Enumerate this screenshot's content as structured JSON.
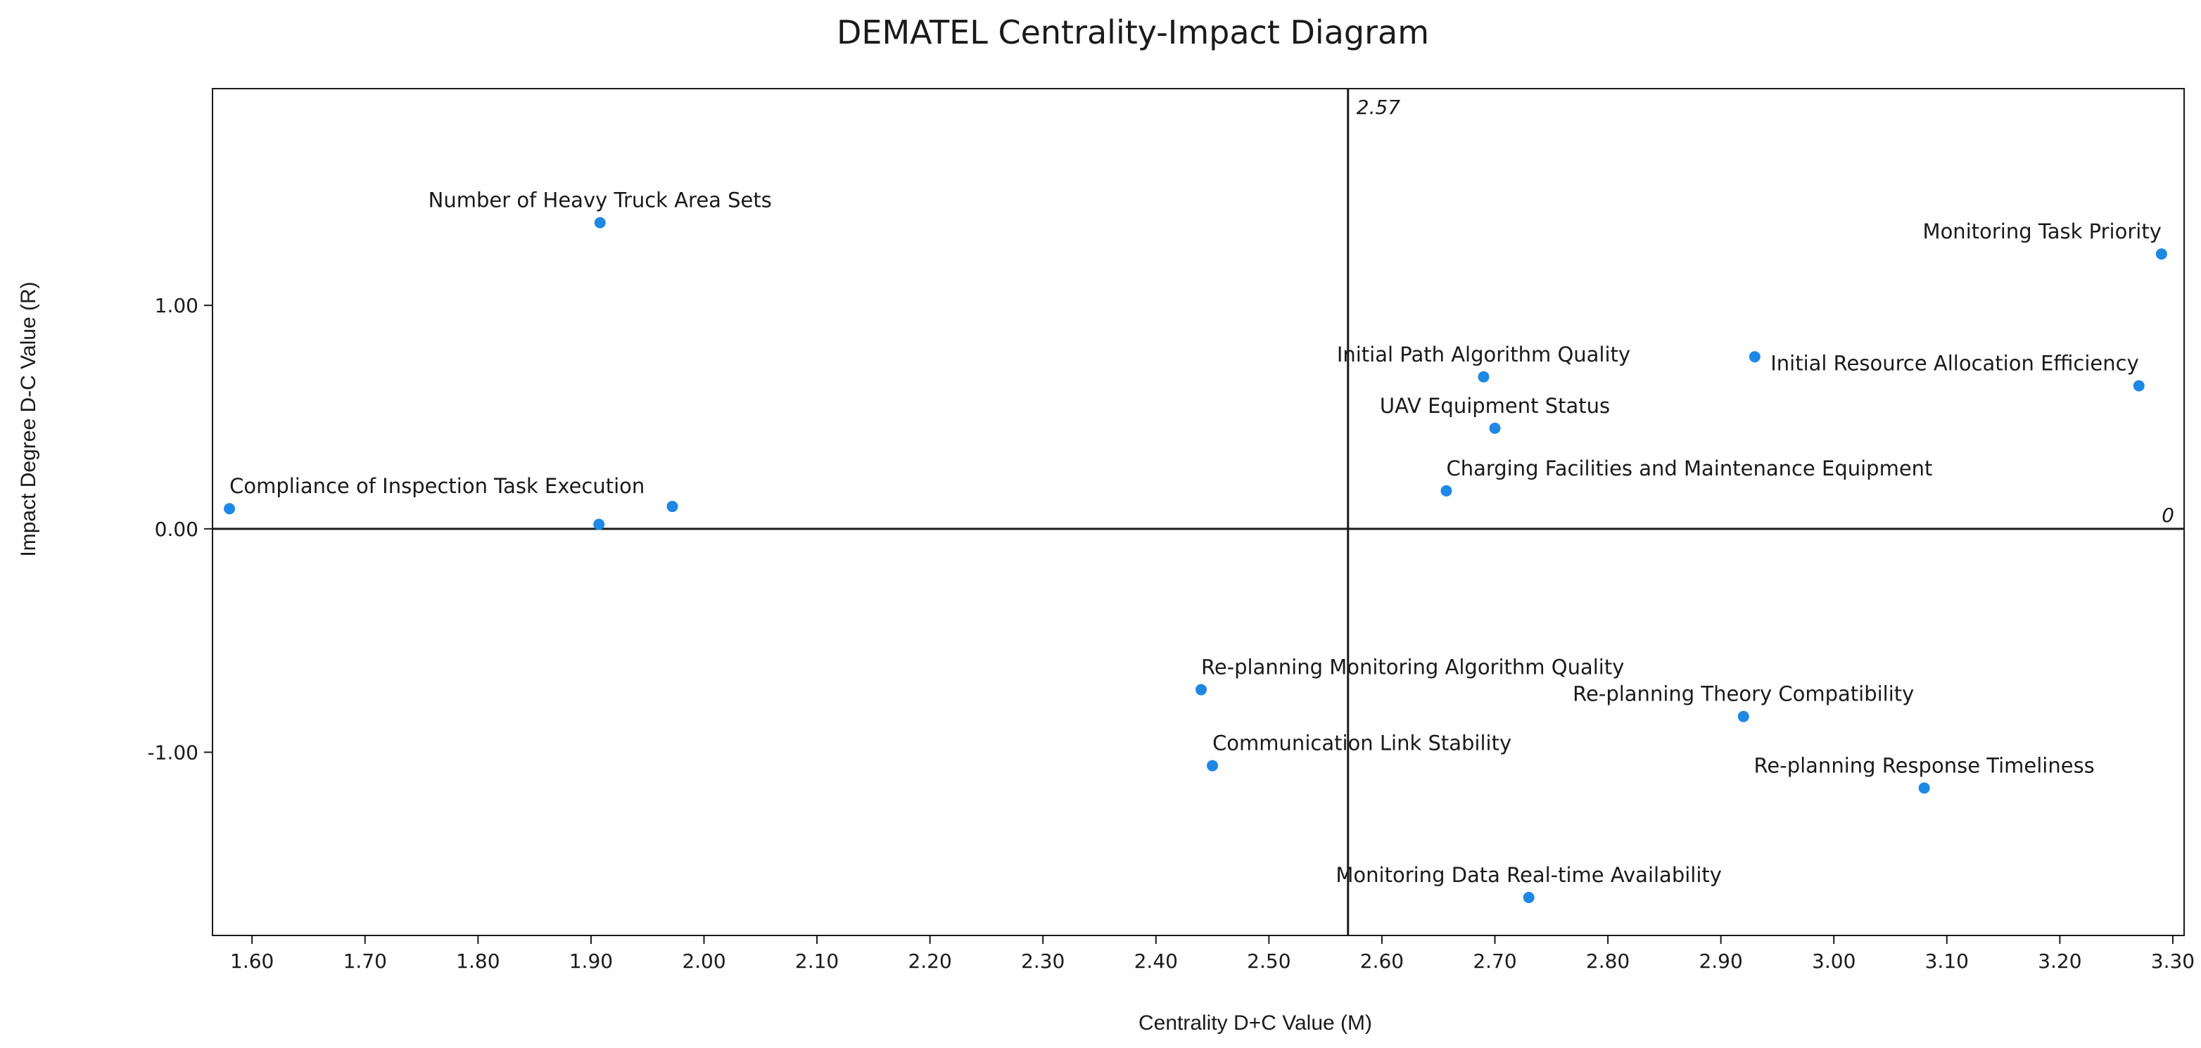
{
  "chart_data": {
    "type": "scatter",
    "title": "DEMATEL Centrality-Impact Diagram",
    "xlabel": "Centrality D+C Value (M)",
    "ylabel": "Impact Degree D-C Value (R)",
    "xlim": [
      1.565,
      3.31
    ],
    "ylim": [
      -1.82,
      1.97
    ],
    "x_ticks": [
      1.6,
      1.7,
      1.8,
      1.9,
      2.0,
      2.1,
      2.2,
      2.3,
      2.4,
      2.5,
      2.6,
      2.7,
      2.8,
      2.9,
      3.0,
      3.1,
      3.2,
      3.3
    ],
    "x_tick_labels": [
      "1.60",
      "1.70",
      "1.80",
      "1.90",
      "2.00",
      "2.10",
      "2.20",
      "2.30",
      "2.40",
      "2.50",
      "2.60",
      "2.70",
      "2.80",
      "2.90",
      "3.00",
      "3.10",
      "3.20",
      "3.30"
    ],
    "y_ticks": [
      1.0,
      0.0,
      -1.0
    ],
    "y_tick_labels": [
      "1.00",
      "0.00",
      "-1.00"
    ],
    "grid": false,
    "point_color": "#1e88e5",
    "reference_lines": {
      "vertical": {
        "value": 2.57,
        "label": "2.57"
      },
      "horizontal": {
        "value": 0,
        "label": "0"
      }
    },
    "points": [
      {
        "x": 1.908,
        "y": 1.37,
        "label": "Number of Heavy Truck Area Sets",
        "anchor": "middle"
      },
      {
        "x": 3.29,
        "y": 1.23,
        "label": "Monitoring Task Priority",
        "anchor": "end"
      },
      {
        "x": 2.69,
        "y": 0.68,
        "label": "Initial Path Algorithm Quality",
        "anchor": "middle"
      },
      {
        "x": 2.93,
        "y": 0.77,
        "label": "",
        "anchor": "middle"
      },
      {
        "x": 3.27,
        "y": 0.64,
        "label": "Initial Resource Allocation Efficiency",
        "anchor": "end"
      },
      {
        "x": 2.7,
        "y": 0.45,
        "label": "UAV Equipment Status",
        "anchor": "middle"
      },
      {
        "x": 2.657,
        "y": 0.17,
        "label": "Charging Facilities and Maintenance Equipment",
        "anchor": "start"
      },
      {
        "x": 1.58,
        "y": 0.09,
        "label": "Compliance of Inspection Task Execution",
        "anchor": "start"
      },
      {
        "x": 1.907,
        "y": 0.02,
        "label": "",
        "anchor": "middle"
      },
      {
        "x": 1.972,
        "y": 0.1,
        "label": "",
        "anchor": "middle"
      },
      {
        "x": 2.44,
        "y": -0.72,
        "label": "Re-planning Monitoring Algorithm Quality",
        "anchor": "start"
      },
      {
        "x": 2.92,
        "y": -0.84,
        "label": "Re-planning Theory Compatibility",
        "anchor": "middle"
      },
      {
        "x": 2.45,
        "y": -1.06,
        "label": "Communication Link Stability",
        "anchor": "start"
      },
      {
        "x": 3.08,
        "y": -1.16,
        "label": "Re-planning Response Timeliness",
        "anchor": "middle"
      },
      {
        "x": 2.73,
        "y": -1.65,
        "label": "Monitoring Data Real-time Availability",
        "anchor": "middle"
      }
    ]
  }
}
